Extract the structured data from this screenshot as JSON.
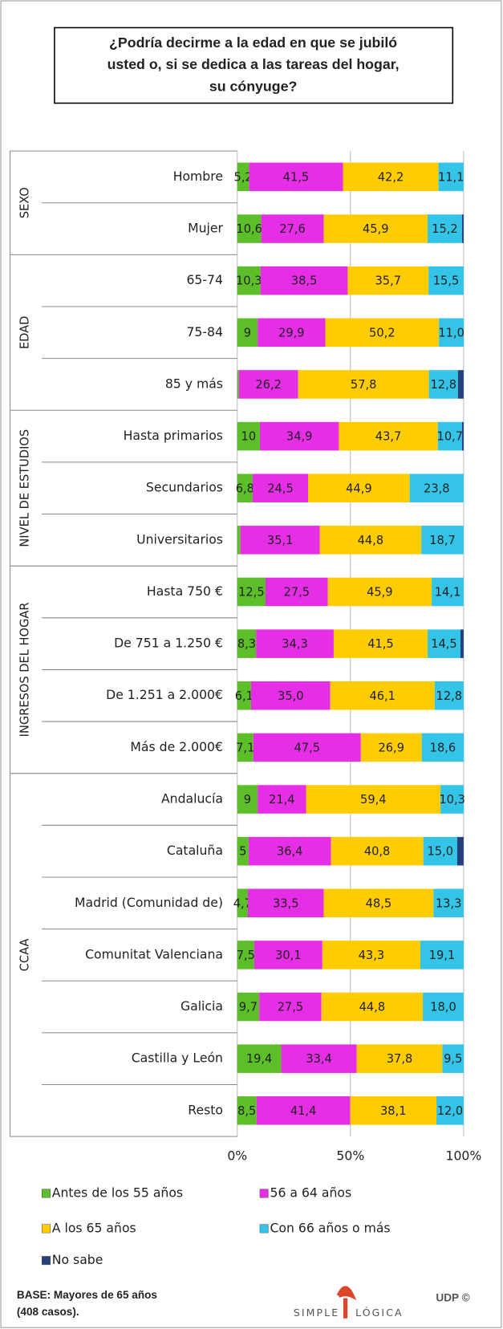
{
  "chart_data": {
    "type": "stacked_bar_horizontal",
    "title_lines": [
      "¿Podría decirme a la edad en que se jubiló",
      "usted o, si se dedica a las tareas del hogar,",
      "su cónyuge?"
    ],
    "groups": [
      {
        "label": "SEXO",
        "categories": [
          "Hombre",
          "Mujer"
        ]
      },
      {
        "label": "EDAD",
        "categories": [
          "65-74",
          "75-84",
          "85 y más"
        ]
      },
      {
        "label": "NIVEL DE ESTUDIOS",
        "categories": [
          "Hasta primarios",
          "Secundarios",
          "Universitarios"
        ]
      },
      {
        "label": "INGRESOS DEL HOGAR",
        "categories": [
          "Hasta 750 €",
          "De 751 a 1.250 €",
          "De 1.251 a 2.000€",
          "Más de 2.000€"
        ]
      },
      {
        "label": "CCAA",
        "categories": [
          "Andalucía",
          "Cataluña",
          "Madrid (Comunidad de)",
          "Comunitat Valenciana",
          "Galicia",
          "Castilla y León",
          "Resto"
        ]
      }
    ],
    "series": [
      {
        "name": "Antes de los 55 años",
        "color": "#5cbf2a",
        "values": [
          5.2,
          10.6,
          10.3,
          9,
          0.7,
          10,
          6.8,
          1.4,
          12.5,
          8.3,
          6.1,
          7.1,
          9,
          5,
          4.7,
          7.5,
          9.7,
          19.4,
          8.5
        ],
        "value_labels": [
          "5,2",
          "10,6",
          "10,3",
          "9",
          null,
          "10",
          "6,8",
          null,
          "12,5",
          "8,3",
          "6,1",
          "7,1",
          "9",
          "5",
          "4,7",
          "7,5",
          "9,7",
          "19,4",
          "8,5"
        ]
      },
      {
        "name": "56  a 64 años",
        "color": "#e62ee6",
        "values": [
          41.5,
          27.6,
          38.5,
          29.9,
          26.2,
          34.9,
          24.5,
          35.1,
          27.5,
          34.3,
          35.0,
          47.5,
          21.4,
          36.4,
          33.5,
          30.1,
          27.5,
          33.4,
          41.4
        ],
        "value_labels": [
          "41,5",
          "27,6",
          "38,5",
          "29,9",
          "26,2",
          "34,9",
          "24,5",
          "35,1",
          "27,5",
          "34,3",
          "35,0",
          "47,5",
          "21,4",
          "36,4",
          "33,5",
          "30,1",
          "27,5",
          "33,4",
          "41,4"
        ]
      },
      {
        "name": "A los 65 años",
        "color": "#ffcc00",
        "values": [
          42.2,
          45.9,
          35.7,
          50.2,
          57.8,
          43.7,
          44.9,
          44.8,
          45.9,
          41.5,
          46.1,
          26.9,
          59.4,
          40.8,
          48.5,
          43.3,
          44.8,
          37.8,
          38.1
        ],
        "value_labels": [
          "42,2",
          "45,9",
          "35,7",
          "50,2",
          "57,8",
          "43,7",
          "44,9",
          "44,8",
          "45,9",
          "41,5",
          "46,1",
          "26,9",
          "59,4",
          "40,8",
          "48,5",
          "43,3",
          "44,8",
          "37,8",
          "38,1"
        ]
      },
      {
        "name": "Con 66 años o más",
        "color": "#33c4e8",
        "values": [
          11.1,
          15.2,
          15.5,
          11.0,
          12.8,
          10.7,
          23.8,
          18.7,
          14.1,
          14.5,
          12.8,
          18.6,
          10.3,
          15.0,
          13.3,
          19.1,
          18.0,
          9.5,
          12.0
        ],
        "value_labels": [
          "11,1",
          "15,2",
          "15,5",
          "11,0",
          "12,8",
          "10,7",
          "23,8",
          "18,7",
          "14,1",
          "14,5",
          "12,8",
          "18,6",
          "10,3",
          "15,0",
          "13,3",
          "19,1",
          "18,0",
          "9,5",
          "12,0"
        ]
      },
      {
        "name": "No sabe",
        "color": "#25407a",
        "values": [
          0,
          0.7,
          0,
          0,
          2.5,
          0.7,
          0,
          0,
          0,
          1.4,
          0,
          0,
          0,
          2.8,
          0,
          0,
          0,
          0,
          0
        ]
      }
    ],
    "xlim": [
      0,
      100
    ],
    "xticks": [
      {
        "value": 0,
        "label": "0%"
      },
      {
        "value": 50,
        "label": "50%"
      },
      {
        "value": 100,
        "label": "100%"
      }
    ],
    "grid": true
  },
  "footer": {
    "base_lines": [
      "BASE: Mayores de 65 años",
      "(408 casos)."
    ],
    "logo_left": "SIMPLE",
    "logo_right": "LÓGICA",
    "brand": "UDP ©"
  }
}
